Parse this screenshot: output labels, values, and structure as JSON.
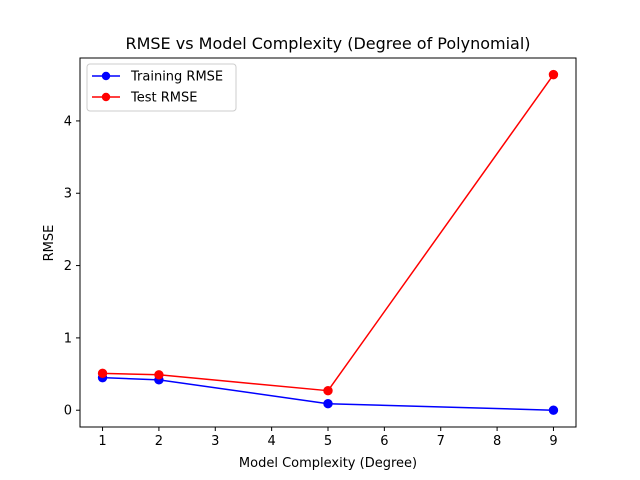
{
  "chart_data": {
    "type": "line",
    "title": "RMSE vs Model Complexity (Degree of Polynomial)",
    "xlabel": "Model Complexity (Degree)",
    "ylabel": "RMSE",
    "x": [
      1,
      2,
      5,
      9
    ],
    "xlim": [
      0.6,
      9.4
    ],
    "ylim": [
      -0.232,
      4.87
    ],
    "xticks": [
      1,
      2,
      3,
      4,
      5,
      6,
      7,
      8,
      9
    ],
    "yticks": [
      0,
      1,
      2,
      3,
      4
    ],
    "grid": false,
    "legend_position": "top-left",
    "series": [
      {
        "name": "Training RMSE",
        "color": "#0000ff",
        "marker": "circle",
        "values": [
          0.45,
          0.42,
          0.09,
          0.0
        ]
      },
      {
        "name": "Test RMSE",
        "color": "#ff0000",
        "marker": "circle",
        "values": [
          0.51,
          0.49,
          0.27,
          4.64
        ]
      }
    ]
  }
}
